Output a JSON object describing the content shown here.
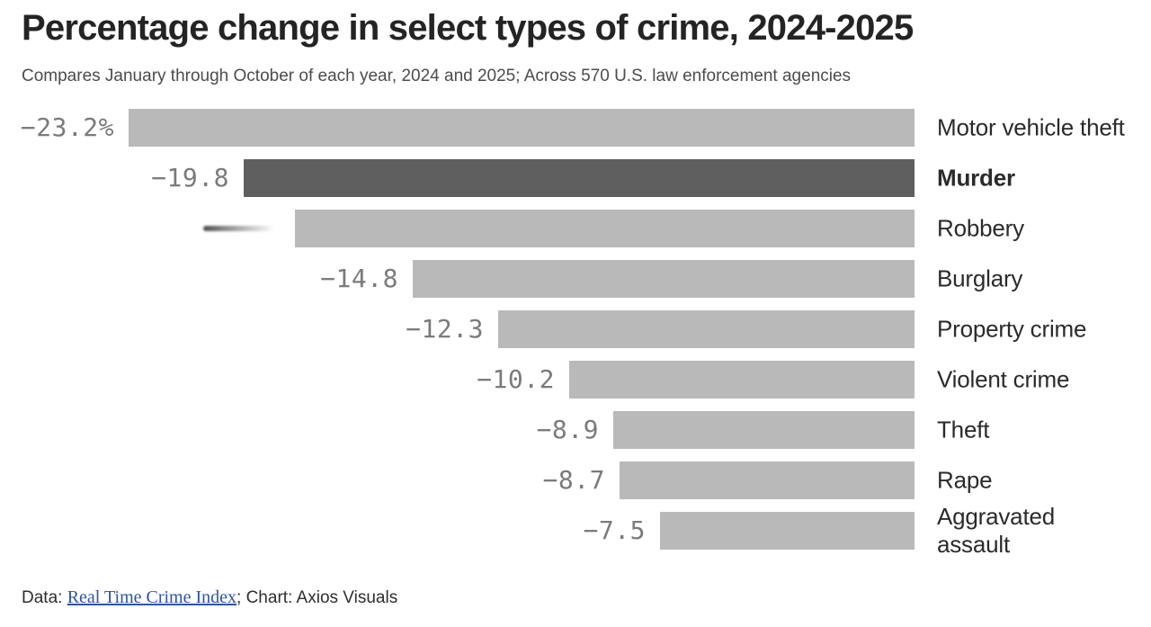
{
  "header": {
    "title": "Percentage change in select types of crime, 2024-2025",
    "subtitle": "Compares January through October of each year, 2024 and 2025; Across 570 U.S. law enforcement agencies"
  },
  "footer": {
    "prefix": "Data: ",
    "link_text": "Real Time Crime Index",
    "suffix": "; Chart: Axios Visuals"
  },
  "colors": {
    "bar_default": "#b9b9b9",
    "bar_emphasis": "#5f5f5f",
    "value_label": "#7b7b7b",
    "category_label": "#2b2b2b",
    "title_text": "#242424",
    "subtitle_text": "#4c4c4c",
    "link_blue": "#2f52a8"
  },
  "chart_data": {
    "type": "bar",
    "orientation": "horizontal",
    "unit": "%",
    "title": "Percentage change in select types of crime, 2024-2025",
    "subtitle": "Compares January through October of each year, 2024 and 2025; Across 570 U.S. law enforcement agencies",
    "xlim": [
      -23.2,
      0
    ],
    "grid": false,
    "legend": false,
    "value_axis_note": "bars right-aligned at zero baseline; negative values extend left",
    "categories": [
      "Motor vehicle theft",
      "Murder",
      "Robbery",
      "Burglary",
      "Property crime",
      "Violent crime",
      "Theft",
      "Rape",
      "Aggravated assault"
    ],
    "values": [
      -23.2,
      -19.8,
      -18.3,
      -14.8,
      -12.3,
      -10.2,
      -8.9,
      -8.7,
      -7.5
    ],
    "rows": [
      {
        "category": "Motor vehicle theft",
        "value": -23.2,
        "label": "−23.2%",
        "emphasis": false,
        "label_blurred": false
      },
      {
        "category": "Murder",
        "value": -19.8,
        "label": "−19.8",
        "emphasis": true,
        "label_blurred": false
      },
      {
        "category": "Robbery",
        "value": -18.3,
        "label": "",
        "emphasis": false,
        "label_blurred": true
      },
      {
        "category": "Burglary",
        "value": -14.8,
        "label": "−14.8",
        "emphasis": false,
        "label_blurred": false
      },
      {
        "category": "Property crime",
        "value": -12.3,
        "label": "−12.3",
        "emphasis": false,
        "label_blurred": false
      },
      {
        "category": "Violent crime",
        "value": -10.2,
        "label": "−10.2",
        "emphasis": false,
        "label_blurred": false
      },
      {
        "category": "Theft",
        "value": -8.9,
        "label": "−8.9",
        "emphasis": false,
        "label_blurred": false
      },
      {
        "category": "Rape",
        "value": -8.7,
        "label": "−8.7",
        "emphasis": false,
        "label_blurred": false
      },
      {
        "category": "Aggravated assault",
        "value": -7.5,
        "label": "−7.5",
        "emphasis": false,
        "label_blurred": false
      }
    ]
  }
}
